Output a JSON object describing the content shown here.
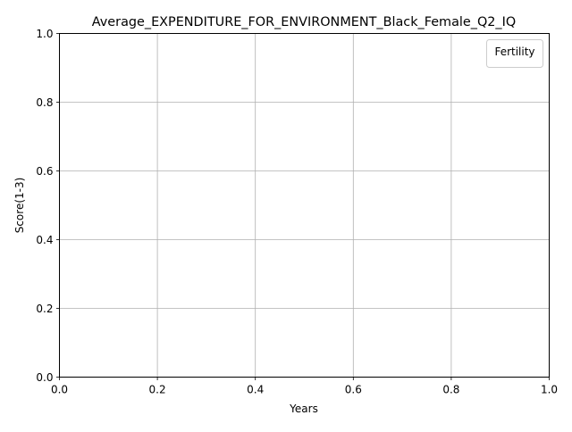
{
  "chart_data": {
    "type": "line",
    "title": "Average_EXPENDITURE_FOR_ENVIRONMENT_Black_Female_Q2_IQ",
    "xlabel": "Years",
    "ylabel": "Score(1-3)",
    "xlim": [
      0.0,
      1.0
    ],
    "ylim": [
      0.0,
      1.0
    ],
    "xticks": [
      "0.0",
      "0.2",
      "0.4",
      "0.6",
      "0.8",
      "1.0"
    ],
    "yticks": [
      "0.0",
      "0.2",
      "0.4",
      "0.6",
      "0.8",
      "1.0"
    ],
    "grid": true,
    "legend": {
      "title": "Fertility",
      "placement": "top-right",
      "entries": []
    },
    "series": []
  }
}
